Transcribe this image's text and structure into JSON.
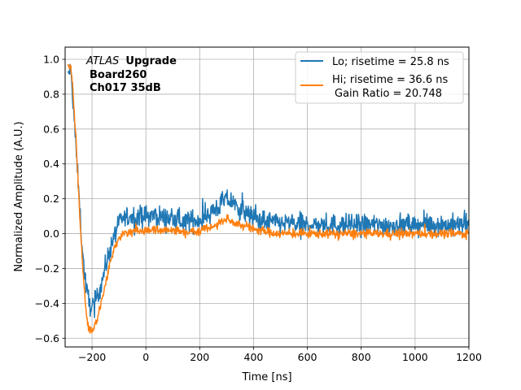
{
  "chart_data": {
    "type": "line",
    "xlabel": "Time [ns]",
    "ylabel": "Normalized Amplitude (A.U.)",
    "xlim": [
      -300,
      1200
    ],
    "ylim": [
      -0.65,
      1.07
    ],
    "xticks": [
      -200,
      0,
      200,
      400,
      600,
      800,
      1000,
      1200
    ],
    "yticks": [
      -0.6,
      -0.4,
      -0.2,
      0.0,
      0.2,
      0.4,
      0.6,
      0.8,
      1.0
    ],
    "xtick_labels": [
      "−200",
      "0",
      "200",
      "400",
      "600",
      "800",
      "1000",
      "1200"
    ],
    "ytick_labels": [
      "−0.6",
      "−0.4",
      "−0.2",
      "0.0",
      "0.2",
      "0.4",
      "0.6",
      "0.8",
      "1.0"
    ],
    "grid": true,
    "legend_position": "top-right",
    "annotation": {
      "line1_italic": "ATLAS",
      "line1_bold": "Upgrade",
      "line2": "Board260",
      "line3": "Ch017 35dB"
    },
    "series": [
      {
        "name": "Lo; risetime = 25.8 ns",
        "color": "#1f77b4",
        "noise_amplitude": 0.06,
        "x": [
          -290,
          -280,
          -270,
          -260,
          -250,
          -240,
          -230,
          -220,
          -210,
          -200,
          -190,
          -180,
          -170,
          -160,
          -150,
          -140,
          -130,
          -120,
          -110,
          -100,
          -90,
          -80,
          -60,
          -40,
          -20,
          0,
          20,
          50,
          100,
          150,
          200,
          250,
          280,
          300,
          320,
          350,
          400,
          450,
          500,
          600,
          700,
          800,
          900,
          1000,
          1100,
          1200
        ],
        "y": [
          0.9,
          0.95,
          0.75,
          0.5,
          0.25,
          0.0,
          -0.2,
          -0.33,
          -0.4,
          -0.42,
          -0.4,
          -0.36,
          -0.31,
          -0.25,
          -0.19,
          -0.13,
          -0.07,
          -0.02,
          0.02,
          0.05,
          0.08,
          0.09,
          0.1,
          0.1,
          0.1,
          0.1,
          0.1,
          0.1,
          0.08,
          0.07,
          0.08,
          0.13,
          0.17,
          0.2,
          0.18,
          0.14,
          0.09,
          0.07,
          0.06,
          0.05,
          0.05,
          0.05,
          0.05,
          0.05,
          0.05,
          0.05
        ]
      },
      {
        "name": "Hi; risetime = 36.6 ns",
        "name_line2": "Gain Ratio = 20.748",
        "color": "#ff7f0e",
        "noise_amplitude": 0.025,
        "x": [
          -290,
          -280,
          -270,
          -260,
          -250,
          -240,
          -230,
          -220,
          -210,
          -200,
          -190,
          -180,
          -170,
          -160,
          -150,
          -140,
          -130,
          -120,
          -110,
          -100,
          -90,
          -80,
          -60,
          -40,
          -20,
          0,
          20,
          50,
          100,
          150,
          200,
          250,
          280,
          300,
          320,
          350,
          400,
          450,
          500,
          600,
          700,
          800,
          900,
          1000,
          1100,
          1200
        ],
        "y": [
          0.95,
          0.98,
          0.8,
          0.55,
          0.25,
          -0.05,
          -0.3,
          -0.47,
          -0.55,
          -0.56,
          -0.53,
          -0.49,
          -0.43,
          -0.36,
          -0.29,
          -0.22,
          -0.15,
          -0.1,
          -0.06,
          -0.03,
          -0.01,
          0.0,
          0.01,
          0.02,
          0.02,
          0.02,
          0.02,
          0.02,
          0.02,
          0.01,
          0.02,
          0.04,
          0.07,
          0.08,
          0.07,
          0.05,
          0.03,
          0.01,
          0.0,
          0.0,
          0.0,
          0.0,
          0.0,
          0.0,
          0.0,
          0.0
        ]
      }
    ]
  }
}
